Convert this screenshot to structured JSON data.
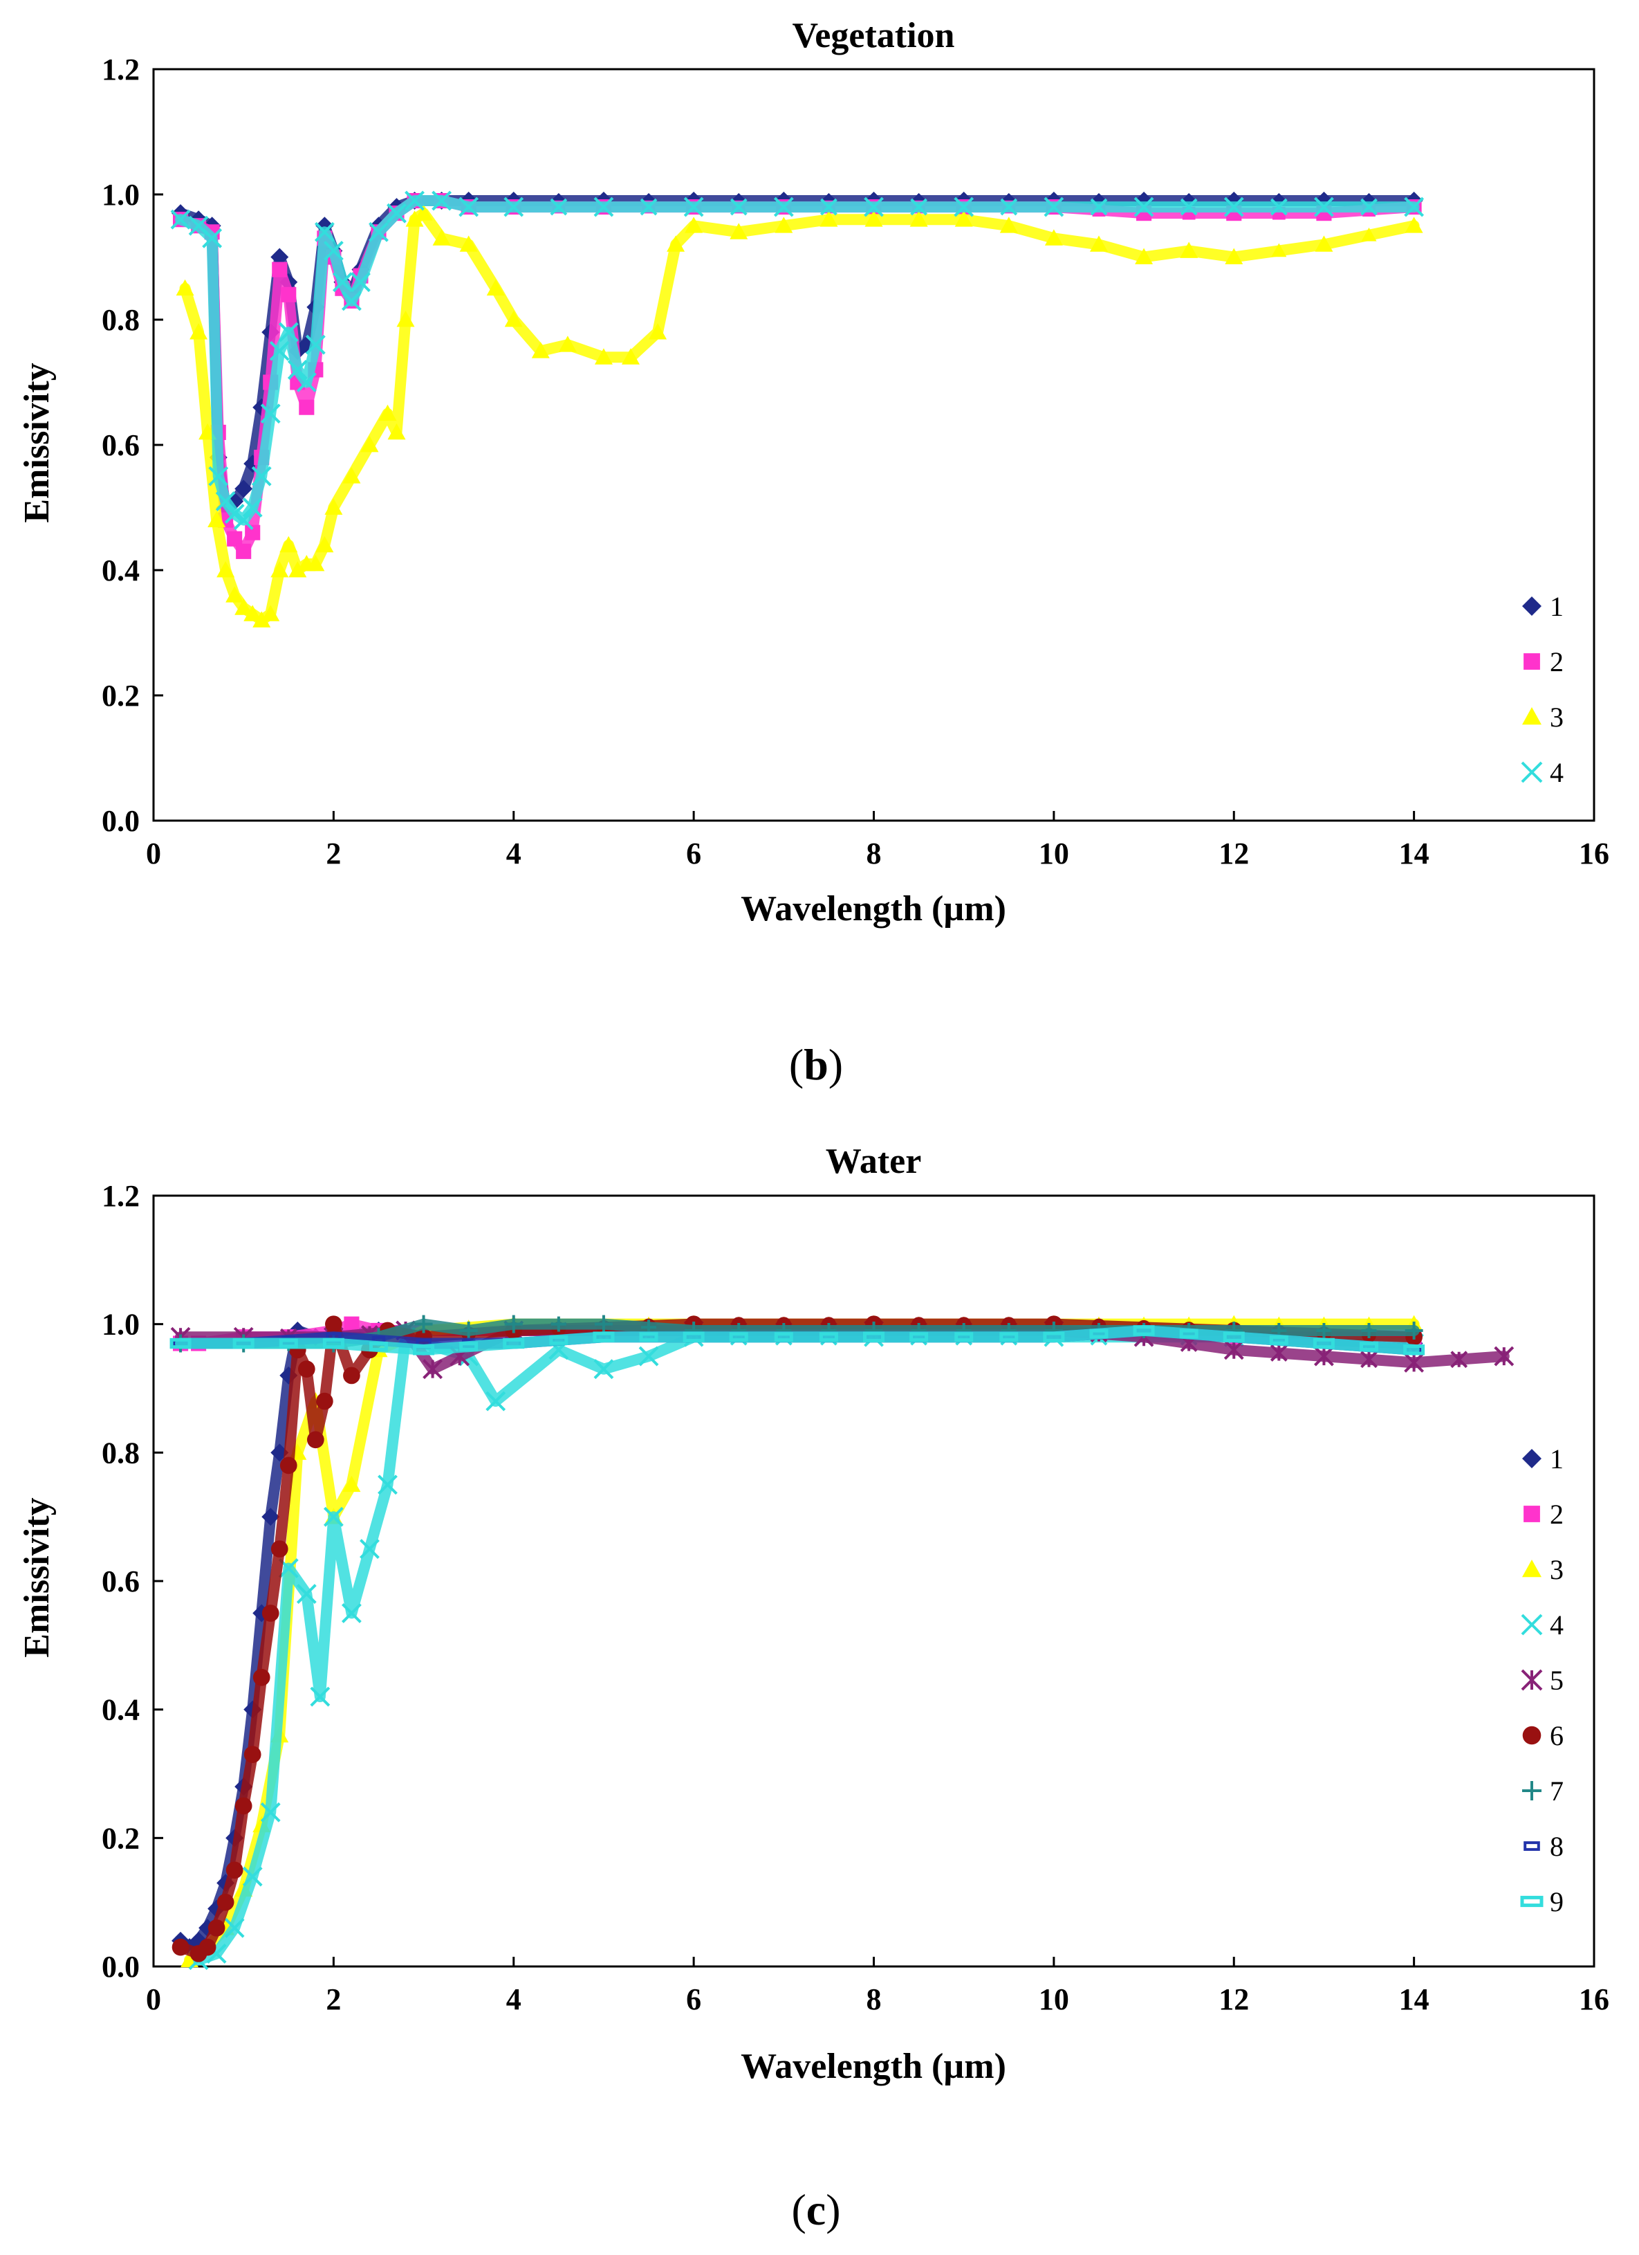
{
  "chart_data": [
    {
      "type": "scatter",
      "title": "Vegetation",
      "xlabel": "Wavelength (µm)",
      "ylabel": "Emissivity",
      "xlim": [
        0,
        16
      ],
      "ylim": [
        0.0,
        1.2
      ],
      "xticks": [
        "0",
        "2",
        "4",
        "6",
        "8",
        "10",
        "12",
        "14",
        "16"
      ],
      "yticks": [
        "0.0",
        "0.2",
        "0.4",
        "0.6",
        "0.8",
        "1.0",
        "1.2"
      ],
      "grid": false,
      "legend_position": "right",
      "panel_label": {
        "open": "(",
        "letter": "b",
        "close": ")"
      },
      "series": [
        {
          "name": "1",
          "marker": "diamond",
          "color": "#1f2a8a",
          "x": [
            0.3,
            0.5,
            0.65,
            0.72,
            0.8,
            0.9,
            1.0,
            1.1,
            1.2,
            1.3,
            1.4,
            1.5,
            1.6,
            1.7,
            1.8,
            1.9,
            2.0,
            2.1,
            2.2,
            2.3,
            2.5,
            2.7,
            2.9,
            3.2,
            3.5,
            4.0,
            5.0,
            6.0,
            7.0,
            8.0,
            9.0,
            10.0,
            11.0,
            12.0,
            13.0,
            14.0
          ],
          "y": [
            0.97,
            0.96,
            0.95,
            0.58,
            0.5,
            0.51,
            0.53,
            0.57,
            0.66,
            0.78,
            0.9,
            0.86,
            0.75,
            0.76,
            0.82,
            0.95,
            0.91,
            0.86,
            0.84,
            0.88,
            0.95,
            0.98,
            0.99,
            0.99,
            0.99,
            0.99,
            0.99,
            0.99,
            0.99,
            0.99,
            0.99,
            0.99,
            0.99,
            0.99,
            0.99,
            0.99
          ]
        },
        {
          "name": "2",
          "marker": "square",
          "color": "#ff33cc",
          "x": [
            0.3,
            0.5,
            0.65,
            0.72,
            0.8,
            0.9,
            1.0,
            1.1,
            1.2,
            1.3,
            1.4,
            1.5,
            1.6,
            1.7,
            1.8,
            1.9,
            2.0,
            2.1,
            2.2,
            2.3,
            2.5,
            2.7,
            2.9,
            3.2,
            3.5,
            4.0,
            5.0,
            6.0,
            7.0,
            8.0,
            9.0,
            10.0,
            11.0,
            12.0,
            13.0,
            14.0
          ],
          "y": [
            0.96,
            0.95,
            0.94,
            0.62,
            0.48,
            0.45,
            0.43,
            0.46,
            0.58,
            0.7,
            0.88,
            0.84,
            0.7,
            0.66,
            0.72,
            0.93,
            0.9,
            0.85,
            0.83,
            0.87,
            0.94,
            0.97,
            0.99,
            0.99,
            0.98,
            0.98,
            0.98,
            0.98,
            0.98,
            0.98,
            0.98,
            0.98,
            0.97,
            0.97,
            0.97,
            0.98
          ]
        },
        {
          "name": "3",
          "marker": "triangle",
          "color": "#ffff00",
          "x": [
            0.35,
            0.5,
            0.6,
            0.7,
            0.8,
            0.9,
            1.0,
            1.1,
            1.2,
            1.3,
            1.4,
            1.5,
            1.6,
            1.7,
            1.8,
            1.9,
            2.0,
            2.2,
            2.4,
            2.6,
            2.7,
            2.8,
            2.9,
            3.0,
            3.2,
            3.5,
            3.8,
            4.0,
            4.3,
            4.6,
            5.0,
            5.3,
            5.6,
            5.8,
            6.0,
            6.5,
            7.0,
            7.5,
            8.0,
            8.5,
            9.0,
            9.5,
            10.0,
            10.5,
            11.0,
            11.5,
            12.0,
            13.0,
            14.0
          ],
          "y": [
            0.85,
            0.78,
            0.62,
            0.48,
            0.4,
            0.36,
            0.34,
            0.33,
            0.32,
            0.33,
            0.4,
            0.44,
            0.4,
            0.41,
            0.41,
            0.44,
            0.5,
            0.55,
            0.6,
            0.65,
            0.62,
            0.8,
            0.96,
            0.97,
            0.93,
            0.92,
            0.85,
            0.8,
            0.75,
            0.76,
            0.74,
            0.74,
            0.78,
            0.92,
            0.95,
            0.94,
            0.95,
            0.96,
            0.96,
            0.96,
            0.96,
            0.95,
            0.93,
            0.92,
            0.9,
            0.91,
            0.9,
            0.92,
            0.95
          ]
        },
        {
          "name": "4",
          "marker": "cross",
          "color": "#33dddd",
          "x": [
            0.3,
            0.5,
            0.65,
            0.72,
            0.8,
            0.9,
            1.0,
            1.1,
            1.2,
            1.3,
            1.4,
            1.5,
            1.6,
            1.7,
            1.8,
            1.9,
            2.0,
            2.1,
            2.2,
            2.3,
            2.5,
            2.7,
            2.9,
            3.2,
            3.5,
            4.0,
            5.0,
            6.0,
            7.0,
            8.0,
            9.0,
            10.0,
            11.0,
            12.0,
            13.0,
            14.0
          ],
          "y": [
            0.96,
            0.95,
            0.93,
            0.55,
            0.51,
            0.49,
            0.48,
            0.5,
            0.55,
            0.65,
            0.75,
            0.78,
            0.72,
            0.7,
            0.76,
            0.94,
            0.91,
            0.86,
            0.83,
            0.86,
            0.94,
            0.97,
            0.99,
            0.99,
            0.98,
            0.98,
            0.98,
            0.98,
            0.98,
            0.98,
            0.98,
            0.98,
            0.98,
            0.98,
            0.98,
            0.98
          ]
        }
      ]
    },
    {
      "type": "scatter",
      "title": "Water",
      "xlabel": "Wavelength (µm)",
      "ylabel": "Emissivity",
      "xlim": [
        0,
        16
      ],
      "ylim": [
        0.0,
        1.2
      ],
      "xticks": [
        "0",
        "2",
        "4",
        "6",
        "8",
        "10",
        "12",
        "14",
        "16"
      ],
      "yticks": [
        "0.0",
        "0.2",
        "0.4",
        "0.6",
        "0.8",
        "1.0",
        "1.2"
      ],
      "grid": false,
      "legend_position": "right",
      "panel_label": {
        "open": "(",
        "letter": "c",
        "close": ")"
      },
      "series": [
        {
          "name": "1",
          "marker": "diamond",
          "color": "#1f2a8a",
          "x": [
            0.3,
            0.4,
            0.5,
            0.6,
            0.7,
            0.8,
            0.9,
            1.0,
            1.1,
            1.2,
            1.3,
            1.4,
            1.5,
            1.6,
            1.8,
            2.0,
            2.5,
            3.0,
            4.0,
            5.0,
            6.0,
            8.0,
            10.0,
            12.0,
            14.0
          ],
          "y": [
            0.04,
            0.03,
            0.04,
            0.06,
            0.09,
            0.13,
            0.2,
            0.28,
            0.4,
            0.55,
            0.7,
            0.8,
            0.92,
            0.99,
            0.98,
            0.98,
            0.99,
            0.99,
            0.99,
            0.99,
            0.99,
            0.99,
            0.99,
            0.98,
            0.97
          ]
        },
        {
          "name": "2",
          "marker": "square",
          "color": "#ff33cc",
          "x": [
            0.3,
            0.5,
            1.0,
            1.5,
            2.0,
            2.2,
            2.5,
            3.0,
            4.0,
            6.0,
            8.0,
            10.0,
            12.0,
            14.0
          ],
          "y": [
            0.97,
            0.97,
            0.98,
            0.98,
            0.99,
            1.0,
            0.99,
            0.99,
            0.99,
            0.99,
            0.99,
            0.99,
            0.98,
            0.98
          ]
        },
        {
          "name": "3",
          "marker": "triangle",
          "color": "#ffff00",
          "x": [
            0.4,
            0.6,
            0.8,
            1.0,
            1.2,
            1.4,
            1.6,
            1.8,
            2.0,
            2.2,
            2.5,
            3.0,
            4.0,
            6.0,
            8.0,
            10.0,
            12.0,
            14.0
          ],
          "y": [
            0.01,
            0.03,
            0.06,
            0.12,
            0.22,
            0.36,
            0.8,
            0.88,
            0.7,
            0.75,
            0.96,
            0.99,
            1.0,
            1.0,
            1.0,
            1.0,
            1.0,
            1.0
          ]
        },
        {
          "name": "4",
          "marker": "cross",
          "color": "#33dddd",
          "x": [
            0.5,
            0.7,
            0.9,
            1.1,
            1.3,
            1.5,
            1.7,
            1.85,
            2.0,
            2.2,
            2.4,
            2.6,
            2.8,
            3.0,
            3.5,
            3.8,
            4.5,
            5.0,
            5.5,
            6.0,
            8.0,
            10.0,
            12.0,
            14.0
          ],
          "y": [
            0.01,
            0.02,
            0.06,
            0.14,
            0.24,
            0.62,
            0.58,
            0.42,
            0.7,
            0.55,
            0.65,
            0.75,
            0.98,
            0.97,
            0.95,
            0.88,
            0.96,
            0.93,
            0.95,
            0.98,
            0.98,
            0.98,
            0.98,
            0.97
          ]
        },
        {
          "name": "5",
          "marker": "asterisk",
          "color": "#882277",
          "x": [
            0.3,
            1.0,
            2.0,
            2.8,
            3.1,
            3.4,
            4.0,
            6.0,
            8.0,
            10.0,
            11.0,
            12.0,
            13.0,
            14.0,
            15.0
          ],
          "y": [
            0.98,
            0.98,
            0.98,
            0.99,
            0.93,
            0.95,
            0.99,
            0.99,
            0.99,
            0.99,
            0.98,
            0.96,
            0.95,
            0.94,
            0.95
          ]
        },
        {
          "name": "6",
          "marker": "circle",
          "color": "#991111",
          "x": [
            0.3,
            0.5,
            0.6,
            0.7,
            0.8,
            0.9,
            1.0,
            1.1,
            1.2,
            1.3,
            1.4,
            1.5,
            1.6,
            1.7,
            1.8,
            1.9,
            2.0,
            2.2,
            2.4,
            2.6,
            3.0,
            4.0,
            6.0,
            8.0,
            10.0,
            12.0,
            14.0
          ],
          "y": [
            0.03,
            0.02,
            0.03,
            0.06,
            0.1,
            0.15,
            0.25,
            0.33,
            0.45,
            0.55,
            0.65,
            0.78,
            0.96,
            0.93,
            0.82,
            0.88,
            1.0,
            0.92,
            0.96,
            0.99,
            0.98,
            0.99,
            1.0,
            1.0,
            1.0,
            0.99,
            0.98
          ]
        },
        {
          "name": "7",
          "marker": "plus",
          "color": "#228888",
          "x": [
            0.3,
            1.0,
            2.0,
            2.5,
            3.0,
            3.5,
            4.0,
            5.0,
            6.0,
            8.0,
            10.0,
            12.0,
            14.0
          ],
          "y": [
            0.97,
            0.97,
            0.97,
            0.98,
            1.0,
            0.99,
            1.0,
            1.0,
            0.99,
            0.99,
            0.99,
            0.99,
            0.99
          ]
        },
        {
          "name": "8",
          "marker": "dash",
          "color": "#2233aa",
          "x": [
            0.3,
            1.0,
            2.0,
            3.0,
            4.0,
            5.0,
            6.0,
            7.0,
            8.0,
            10.0,
            11.0,
            12.0,
            13.0,
            14.0
          ],
          "y": [
            0.97,
            0.97,
            0.98,
            0.97,
            0.97,
            0.98,
            0.98,
            0.98,
            0.98,
            0.98,
            0.99,
            0.98,
            0.97,
            0.96
          ]
        },
        {
          "name": "9",
          "marker": "bar",
          "color": "#33dddd",
          "x": [
            0.3,
            1.0,
            2.0,
            3.0,
            4.0,
            5.0,
            6.0,
            8.0,
            10.0,
            11.0,
            12.0,
            13.0,
            14.0
          ],
          "y": [
            0.97,
            0.97,
            0.97,
            0.96,
            0.97,
            0.98,
            0.98,
            0.98,
            0.98,
            0.99,
            0.98,
            0.97,
            0.96
          ]
        }
      ]
    }
  ]
}
